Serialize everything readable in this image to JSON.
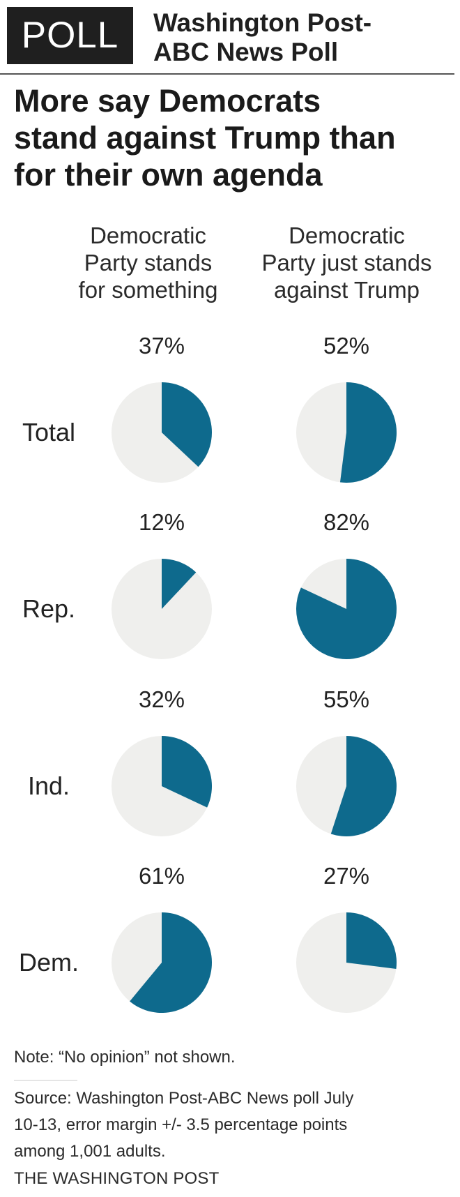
{
  "header": {
    "badge": "POLL",
    "poll_name_line1": "Washington Post-",
    "poll_name_line2": "ABC News Poll"
  },
  "headline": {
    "line1": "More say Democrats",
    "line2": "stand against Trump than",
    "line3": "for their own agenda"
  },
  "column_headers": [
    [
      "Democratic",
      "Party stands",
      "for something"
    ],
    [
      "Democratic",
      "Party just stands",
      "against Trump"
    ]
  ],
  "chart_data": {
    "type": "pie",
    "categories": [
      "Total",
      "Rep.",
      "Ind.",
      "Dem."
    ],
    "series": [
      {
        "name": "Democratic Party stands for something",
        "values": [
          37,
          12,
          32,
          61
        ]
      },
      {
        "name": "Democratic Party just stands against Trump",
        "values": [
          52,
          82,
          55,
          27
        ]
      }
    ],
    "value_labels": [
      [
        "37%",
        "12%",
        "32%",
        "61%"
      ],
      [
        "52%",
        "82%",
        "55%",
        "27%"
      ]
    ],
    "colors": {
      "filled": "#0e6a8d",
      "remainder": "#efefed"
    }
  },
  "footer": {
    "note": "Note: “No opinion” not shown.",
    "source_line1": "Source: Washington Post-ABC News poll July",
    "source_line2": "10-13, error margin +/- 3.5 percentage points",
    "source_line3": "among 1,001 adults.",
    "credit": "THE WASHINGTON POST"
  }
}
